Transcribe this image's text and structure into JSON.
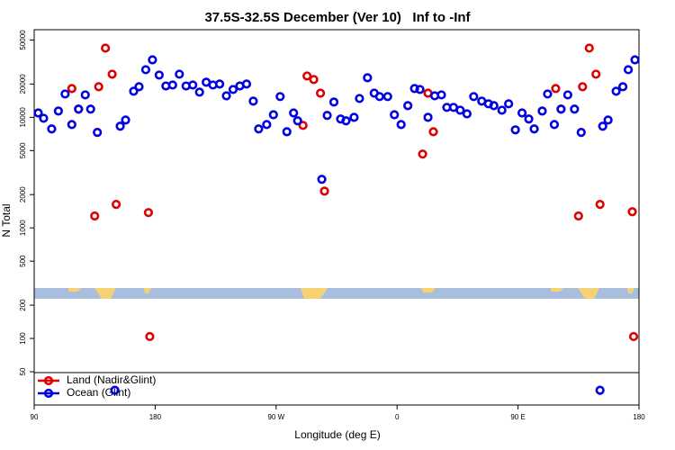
{
  "chart_data": {
    "type": "scatter",
    "title": "37.5S-32.5S December (Ver 10)   Inf to -Inf",
    "x_label": "Longitude (deg E)",
    "y_label": "N Total",
    "log_y": true,
    "grid": false,
    "legend": "bottom-left",
    "xlim": [
      90,
      540
    ],
    "xticks": [
      90,
      180,
      {
        "value": 270,
        "label": "90 W"
      },
      {
        "value": 360,
        "label": "0"
      },
      {
        "value": 450,
        "label": "90 E"
      },
      {
        "value": 540,
        "label": "180"
      }
    ],
    "ylim": [
      25,
      62000
    ],
    "yticks": [
      50,
      100,
      200,
      500,
      1000,
      2000,
      5000,
      10000,
      20000,
      50000
    ],
    "series": [
      {
        "name": "Land (Nadir&Glint)",
        "color": "#e00000",
        "x": [
          118,
          123,
          135,
          138,
          143,
          148,
          151,
          175,
          176,
          290,
          293,
          298,
          303,
          306,
          379,
          383,
          387,
          478,
          482,
          495,
          498,
          503,
          508,
          511,
          535,
          536
        ],
        "values": [
          18200,
          11850,
          1280,
          18900,
          42260,
          24550,
          1630,
          1375,
          104,
          8450,
          23650,
          21950,
          16550,
          2150,
          4650,
          16550,
          7400,
          18200,
          11850,
          1280,
          18900,
          42260,
          24550,
          1630,
          1400,
          104
        ]
      },
      {
        "name": "Ocean (Glint)",
        "color": "#0000e0",
        "x": [
          93,
          97,
          103,
          108,
          113,
          118,
          123,
          128,
          132,
          137,
          150,
          154,
          158,
          164,
          168,
          173,
          178,
          183,
          188,
          193,
          198,
          203,
          208,
          213,
          218,
          223,
          228,
          233,
          238,
          243,
          248,
          253,
          257,
          263,
          268,
          273,
          278,
          283,
          286,
          304,
          308,
          313,
          318,
          322,
          328,
          332,
          338,
          343,
          347,
          353,
          358,
          363,
          368,
          373,
          377,
          383,
          388,
          393,
          397,
          402,
          407,
          412,
          417,
          423,
          428,
          432,
          438,
          443,
          448,
          453,
          458,
          462,
          468,
          472,
          477,
          482,
          487,
          492,
          497,
          511,
          513,
          517,
          523,
          528,
          532,
          537
        ],
        "values": [
          10950,
          9800,
          7850,
          11400,
          16250,
          8600,
          11850,
          15950,
          11850,
          7300,
          34,
          8300,
          9450,
          17200,
          18900,
          26950,
          33100,
          24100,
          19200,
          19600,
          24550,
          19200,
          19600,
          16900,
          20750,
          19600,
          20000,
          15650,
          17850,
          19200,
          20000,
          14000,
          7850,
          8600,
          10550,
          15400,
          7400,
          10950,
          9300,
          2750,
          10400,
          13750,
          9650,
          9300,
          10000,
          14800,
          22800,
          16550,
          15400,
          15400,
          10550,
          8600,
          12750,
          18200,
          17850,
          10000,
          15650,
          15950,
          12300,
          12300,
          11600,
          10750,
          15400,
          14000,
          13250,
          12750,
          11600,
          13250,
          7700,
          10950,
          9650,
          7850,
          11400,
          16250,
          8600,
          11850,
          15950,
          11850,
          7300,
          34,
          8300,
          9450,
          17200,
          18900,
          26950,
          33100
        ]
      }
    ]
  }
}
